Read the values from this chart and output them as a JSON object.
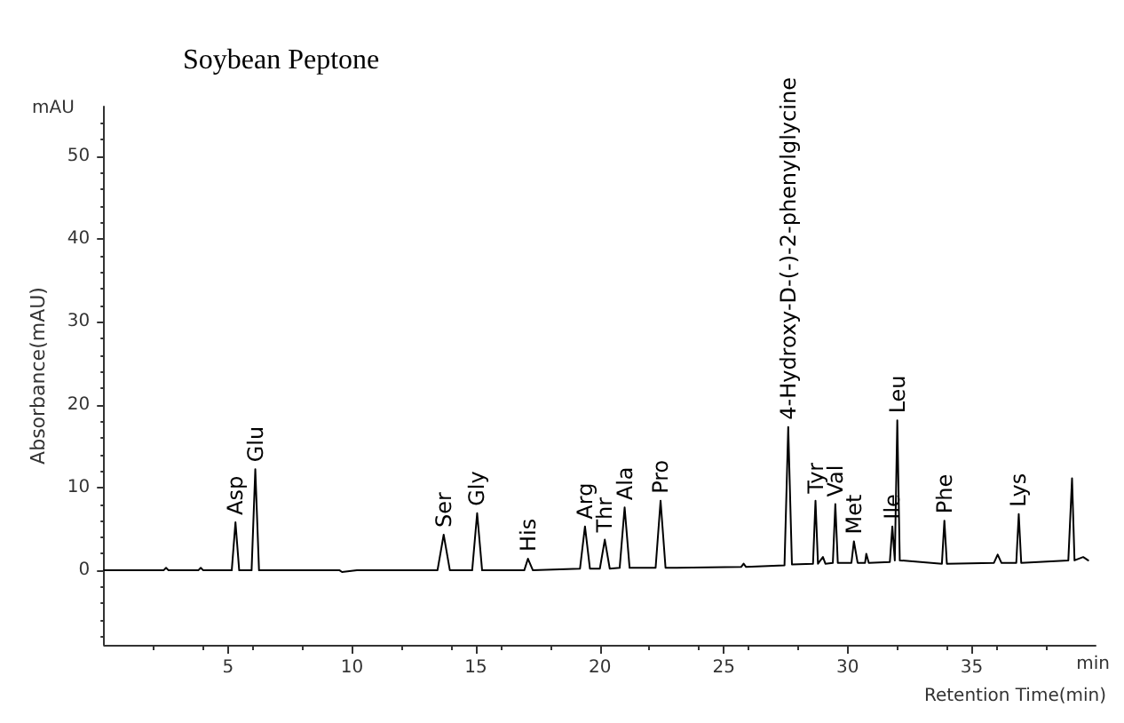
{
  "chart_data": {
    "type": "line",
    "title": "Soybean Peptone",
    "xlabel": "Retention Time(min)",
    "ylabel": "Absorbance(mAU)",
    "xlim": [
      0,
      40
    ],
    "xticks": [
      5,
      10,
      15,
      20,
      25,
      30,
      35
    ],
    "ylim": [
      -9,
      56
    ],
    "yticks": [
      0,
      10,
      20,
      30,
      40,
      50
    ],
    "grid": false,
    "marker": "none",
    "line_style": "solid",
    "series": [
      {
        "color": "#000000",
        "x": [
          0,
          2.4,
          2.5,
          2.6,
          3.8,
          3.9,
          4.0,
          5.15,
          5.3,
          5.45,
          5.95,
          6.1,
          6.25,
          9.5,
          9.6,
          10.2,
          13.45,
          13.7,
          13.95,
          14.85,
          15.05,
          15.25,
          16.95,
          17.1,
          17.3,
          19.2,
          19.4,
          19.6,
          20.0,
          20.2,
          20.4,
          20.8,
          21.0,
          21.2,
          22.25,
          22.45,
          22.65,
          25.7,
          25.8,
          25.9,
          27.45,
          27.6,
          27.75,
          28.6,
          28.7,
          28.8,
          29.0,
          29.1,
          29.4,
          29.5,
          29.6,
          30.15,
          30.25,
          30.4,
          30.7,
          30.75,
          30.85,
          31.7,
          31.8,
          31.9,
          32.0,
          32.1,
          33.8,
          33.9,
          34.0,
          35.9,
          36.05,
          36.2,
          36.8,
          36.9,
          37.0,
          38.9,
          39.05,
          39.15,
          39.5,
          39.7
        ],
        "values": [
          0,
          0,
          0.3,
          0,
          0,
          0.3,
          0,
          0,
          5.8,
          0,
          0,
          12.2,
          0,
          0,
          -0.2,
          0,
          0,
          4.3,
          0,
          0,
          6.9,
          0,
          0,
          1.4,
          0,
          0.2,
          5.3,
          0.2,
          0.2,
          3.7,
          0.2,
          0.3,
          7.6,
          0.3,
          0.3,
          8.4,
          0.3,
          0.4,
          0.8,
          0.4,
          0.6,
          17.3,
          0.7,
          0.8,
          8.4,
          0.8,
          1.6,
          0.8,
          0.9,
          8.0,
          0.9,
          0.9,
          3.5,
          0.9,
          0.9,
          2.0,
          0.9,
          1.0,
          5.3,
          1.2,
          18.1,
          1.2,
          0.8,
          6.0,
          0.8,
          0.9,
          1.9,
          0.9,
          0.9,
          6.8,
          0.9,
          1.2,
          11.1,
          1.2,
          1.6,
          1.2
        ]
      }
    ],
    "annotations": [
      "mAU",
      "min",
      {
        "text": "Asp",
        "x": 5.3,
        "y": 5.8
      },
      {
        "text": "Glu",
        "x": 6.1,
        "y": 12.2
      },
      {
        "text": "Ser",
        "x": 13.7,
        "y": 4.3
      },
      {
        "text": "Gly",
        "x": 15.05,
        "y": 6.9
      },
      {
        "text": "His",
        "x": 17.1,
        "y": 1.4
      },
      {
        "text": "Arg",
        "x": 19.4,
        "y": 5.3
      },
      {
        "text": "Thr",
        "x": 20.2,
        "y": 3.7
      },
      {
        "text": "Ala",
        "x": 21.0,
        "y": 7.6
      },
      {
        "text": "Pro",
        "x": 22.45,
        "y": 8.4
      },
      {
        "text": "4-Hydroxy-D-(-)-2-phenylglycine",
        "x": 27.6,
        "y": 17.3
      },
      {
        "text": "Tyr",
        "x": 28.7,
        "y": 8.4
      },
      {
        "text": "Val",
        "x": 29.5,
        "y": 8.0
      },
      {
        "text": "Met",
        "x": 30.25,
        "y": 3.5
      },
      {
        "text": "Ile",
        "x": 31.8,
        "y": 5.3
      },
      {
        "text": "Leu",
        "x": 32.0,
        "y": 18.1
      },
      {
        "text": "Phe",
        "x": 33.9,
        "y": 6.0
      },
      {
        "text": "Lys",
        "x": 36.9,
        "y": 6.8
      }
    ]
  }
}
